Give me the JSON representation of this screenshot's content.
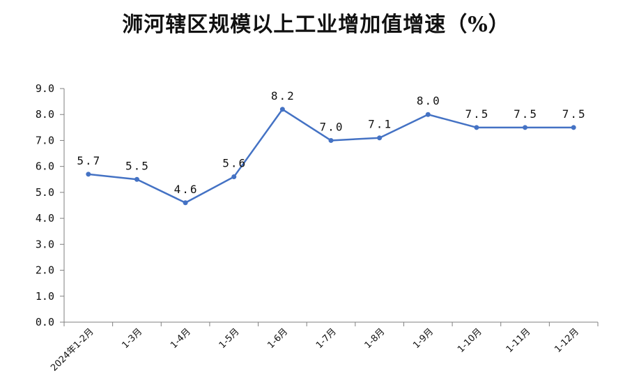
{
  "chart_data": {
    "type": "line",
    "title": "浉河辖区规模以上工业增加值增速（%）",
    "xlabel": "",
    "ylabel": "",
    "categories": [
      "2024年1-2月",
      "1-3月",
      "1-4月",
      "1-5月",
      "1-6月",
      "1-7月",
      "1-8月",
      "1-9月",
      "1-10月",
      "1-11月",
      "1-12月"
    ],
    "values": [
      5.7,
      5.5,
      4.6,
      5.6,
      8.2,
      7.0,
      7.1,
      8.0,
      7.5,
      7.5,
      7.5
    ],
    "value_labels": [
      "5.7",
      "5.5",
      "4.6",
      "5.6",
      "8.2",
      "7.0",
      "7.1",
      "8.0",
      "7.5",
      "7.5",
      "7.5"
    ],
    "ylim": [
      0,
      9
    ],
    "yticks": [
      "0.0",
      "1.0",
      "2.0",
      "3.0",
      "4.0",
      "5.0",
      "6.0",
      "7.0",
      "8.0",
      "9.0"
    ],
    "grid": false,
    "legend": "none",
    "line_color": "#4472C4"
  }
}
